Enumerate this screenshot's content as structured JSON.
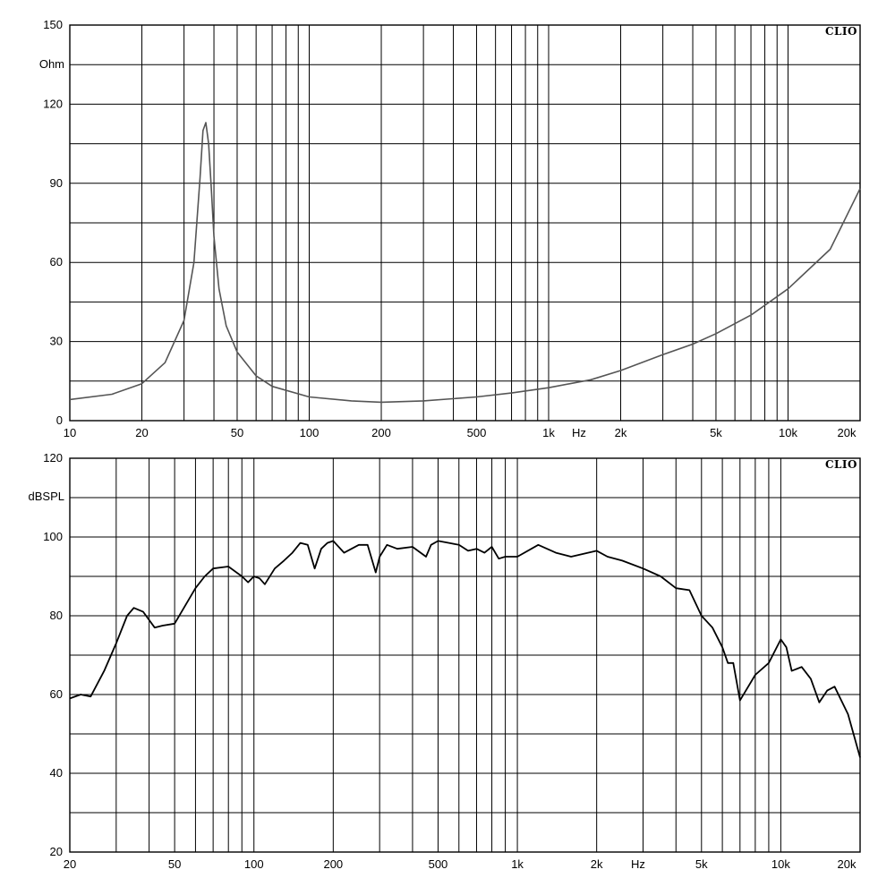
{
  "chart_data": [
    {
      "type": "line",
      "brand": "CLIO",
      "ylabel": "Ohm",
      "xunit": "Hz",
      "xscale": "log",
      "xlim": [
        10,
        20000
      ],
      "ylim": [
        0,
        150
      ],
      "y_ticks": [
        0,
        30,
        60,
        90,
        120,
        150
      ],
      "y_tick_labels": [
        "0",
        "30",
        "60",
        "90",
        "120",
        "150"
      ],
      "x_ticks": [
        10,
        20,
        50,
        100,
        200,
        500,
        1000,
        2000,
        5000,
        10000,
        20000
      ],
      "x_tick_labels": [
        "10",
        "20",
        "50",
        "100",
        "200",
        "500",
        "1k",
        "2k",
        "5k",
        "10k",
        "20k"
      ],
      "grid": true,
      "line_color": "#555555",
      "series": [
        {
          "x": [
            10,
            15,
            20,
            25,
            30,
            33,
            35,
            36,
            37,
            38,
            39,
            40,
            42,
            45,
            50,
            60,
            70,
            100,
            150,
            200,
            300,
            500,
            700,
            1000,
            1500,
            2000,
            3000,
            4000,
            5000,
            7000,
            10000,
            15000,
            20000
          ],
          "y": [
            8,
            10,
            14,
            22,
            38,
            60,
            92,
            110,
            113,
            105,
            88,
            70,
            50,
            36,
            26,
            17,
            13,
            9,
            7.5,
            7,
            7.5,
            9,
            10.5,
            12.5,
            15.5,
            19,
            25,
            29,
            33,
            40,
            50,
            65,
            88
          ]
        }
      ]
    },
    {
      "type": "line",
      "brand": "CLIO",
      "ylabel": "dBSPL",
      "xunit": "Hz",
      "xscale": "log",
      "xlim": [
        20,
        20000
      ],
      "ylim": [
        20,
        120
      ],
      "y_ticks": [
        20,
        40,
        60,
        80,
        100,
        120
      ],
      "y_tick_labels": [
        "20",
        "40",
        "60",
        "80",
        "100",
        "120"
      ],
      "x_ticks": [
        20,
        50,
        100,
        200,
        500,
        1000,
        2000,
        5000,
        10000,
        20000
      ],
      "x_tick_labels": [
        "20",
        "50",
        "100",
        "200",
        "500",
        "1k",
        "2k",
        "5k",
        "10k",
        "20k"
      ],
      "grid": true,
      "line_color": "#000000",
      "series": [
        {
          "x": [
            20,
            22,
            24,
            27,
            30,
            33,
            35,
            38,
            42,
            45,
            50,
            60,
            65,
            70,
            80,
            90,
            95,
            100,
            105,
            110,
            120,
            130,
            140,
            150,
            160,
            170,
            180,
            190,
            200,
            220,
            250,
            270,
            290,
            300,
            320,
            350,
            400,
            450,
            470,
            500,
            550,
            600,
            650,
            700,
            750,
            800,
            850,
            900,
            1000,
            1200,
            1400,
            1600,
            2000,
            2200,
            2500,
            3000,
            3500,
            4000,
            4500,
            5000,
            5500,
            6000,
            6300,
            6600,
            7000,
            8000,
            9000,
            10000,
            10500,
            11000,
            12000,
            13000,
            14000,
            15000,
            16000,
            18000,
            20000
          ],
          "y": [
            59,
            60,
            59.5,
            66,
            73,
            80,
            82,
            81,
            77,
            77.5,
            78,
            87,
            90,
            92,
            92.5,
            90,
            88.5,
            90,
            89.5,
            88,
            92,
            94,
            96,
            98.5,
            98,
            92,
            97,
            98.5,
            99,
            96,
            98,
            98,
            91,
            95,
            98,
            97,
            97.5,
            95,
            98,
            99,
            98.5,
            98,
            96.5,
            97,
            96,
            97.5,
            94.5,
            95,
            95,
            98,
            96,
            95,
            96.5,
            95,
            94,
            92,
            90,
            87,
            86.5,
            80,
            77,
            72,
            68,
            68,
            58.5,
            65,
            68,
            74,
            72,
            66,
            67,
            64,
            58,
            61,
            62,
            55,
            44
          ]
        }
      ]
    }
  ]
}
